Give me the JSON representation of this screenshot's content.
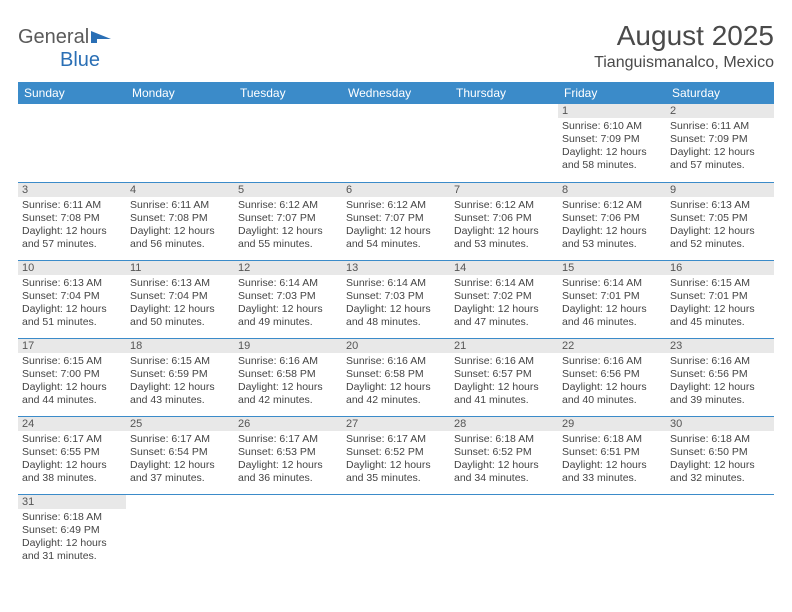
{
  "logo": {
    "text_a": "General",
    "text_b": "Blue"
  },
  "title": "August 2025",
  "location": "Tianguismanalco, Mexico",
  "colors": {
    "header_bg": "#3b8bc9",
    "header_text": "#ffffff",
    "daynum_bg": "#e8e8e8",
    "grid_border": "#3b8bc9",
    "body_text": "#444444"
  },
  "daynames": [
    "Sunday",
    "Monday",
    "Tuesday",
    "Wednesday",
    "Thursday",
    "Friday",
    "Saturday"
  ],
  "weeks": [
    [
      null,
      null,
      null,
      null,
      null,
      {
        "n": "1",
        "sr": "Sunrise: 6:10 AM",
        "ss": "Sunset: 7:09 PM",
        "d1": "Daylight: 12 hours",
        "d2": "and 58 minutes."
      },
      {
        "n": "2",
        "sr": "Sunrise: 6:11 AM",
        "ss": "Sunset: 7:09 PM",
        "d1": "Daylight: 12 hours",
        "d2": "and 57 minutes."
      }
    ],
    [
      {
        "n": "3",
        "sr": "Sunrise: 6:11 AM",
        "ss": "Sunset: 7:08 PM",
        "d1": "Daylight: 12 hours",
        "d2": "and 57 minutes."
      },
      {
        "n": "4",
        "sr": "Sunrise: 6:11 AM",
        "ss": "Sunset: 7:08 PM",
        "d1": "Daylight: 12 hours",
        "d2": "and 56 minutes."
      },
      {
        "n": "5",
        "sr": "Sunrise: 6:12 AM",
        "ss": "Sunset: 7:07 PM",
        "d1": "Daylight: 12 hours",
        "d2": "and 55 minutes."
      },
      {
        "n": "6",
        "sr": "Sunrise: 6:12 AM",
        "ss": "Sunset: 7:07 PM",
        "d1": "Daylight: 12 hours",
        "d2": "and 54 minutes."
      },
      {
        "n": "7",
        "sr": "Sunrise: 6:12 AM",
        "ss": "Sunset: 7:06 PM",
        "d1": "Daylight: 12 hours",
        "d2": "and 53 minutes."
      },
      {
        "n": "8",
        "sr": "Sunrise: 6:12 AM",
        "ss": "Sunset: 7:06 PM",
        "d1": "Daylight: 12 hours",
        "d2": "and 53 minutes."
      },
      {
        "n": "9",
        "sr": "Sunrise: 6:13 AM",
        "ss": "Sunset: 7:05 PM",
        "d1": "Daylight: 12 hours",
        "d2": "and 52 minutes."
      }
    ],
    [
      {
        "n": "10",
        "sr": "Sunrise: 6:13 AM",
        "ss": "Sunset: 7:04 PM",
        "d1": "Daylight: 12 hours",
        "d2": "and 51 minutes."
      },
      {
        "n": "11",
        "sr": "Sunrise: 6:13 AM",
        "ss": "Sunset: 7:04 PM",
        "d1": "Daylight: 12 hours",
        "d2": "and 50 minutes."
      },
      {
        "n": "12",
        "sr": "Sunrise: 6:14 AM",
        "ss": "Sunset: 7:03 PM",
        "d1": "Daylight: 12 hours",
        "d2": "and 49 minutes."
      },
      {
        "n": "13",
        "sr": "Sunrise: 6:14 AM",
        "ss": "Sunset: 7:03 PM",
        "d1": "Daylight: 12 hours",
        "d2": "and 48 minutes."
      },
      {
        "n": "14",
        "sr": "Sunrise: 6:14 AM",
        "ss": "Sunset: 7:02 PM",
        "d1": "Daylight: 12 hours",
        "d2": "and 47 minutes."
      },
      {
        "n": "15",
        "sr": "Sunrise: 6:14 AM",
        "ss": "Sunset: 7:01 PM",
        "d1": "Daylight: 12 hours",
        "d2": "and 46 minutes."
      },
      {
        "n": "16",
        "sr": "Sunrise: 6:15 AM",
        "ss": "Sunset: 7:01 PM",
        "d1": "Daylight: 12 hours",
        "d2": "and 45 minutes."
      }
    ],
    [
      {
        "n": "17",
        "sr": "Sunrise: 6:15 AM",
        "ss": "Sunset: 7:00 PM",
        "d1": "Daylight: 12 hours",
        "d2": "and 44 minutes."
      },
      {
        "n": "18",
        "sr": "Sunrise: 6:15 AM",
        "ss": "Sunset: 6:59 PM",
        "d1": "Daylight: 12 hours",
        "d2": "and 43 minutes."
      },
      {
        "n": "19",
        "sr": "Sunrise: 6:16 AM",
        "ss": "Sunset: 6:58 PM",
        "d1": "Daylight: 12 hours",
        "d2": "and 42 minutes."
      },
      {
        "n": "20",
        "sr": "Sunrise: 6:16 AM",
        "ss": "Sunset: 6:58 PM",
        "d1": "Daylight: 12 hours",
        "d2": "and 42 minutes."
      },
      {
        "n": "21",
        "sr": "Sunrise: 6:16 AM",
        "ss": "Sunset: 6:57 PM",
        "d1": "Daylight: 12 hours",
        "d2": "and 41 minutes."
      },
      {
        "n": "22",
        "sr": "Sunrise: 6:16 AM",
        "ss": "Sunset: 6:56 PM",
        "d1": "Daylight: 12 hours",
        "d2": "and 40 minutes."
      },
      {
        "n": "23",
        "sr": "Sunrise: 6:16 AM",
        "ss": "Sunset: 6:56 PM",
        "d1": "Daylight: 12 hours",
        "d2": "and 39 minutes."
      }
    ],
    [
      {
        "n": "24",
        "sr": "Sunrise: 6:17 AM",
        "ss": "Sunset: 6:55 PM",
        "d1": "Daylight: 12 hours",
        "d2": "and 38 minutes."
      },
      {
        "n": "25",
        "sr": "Sunrise: 6:17 AM",
        "ss": "Sunset: 6:54 PM",
        "d1": "Daylight: 12 hours",
        "d2": "and 37 minutes."
      },
      {
        "n": "26",
        "sr": "Sunrise: 6:17 AM",
        "ss": "Sunset: 6:53 PM",
        "d1": "Daylight: 12 hours",
        "d2": "and 36 minutes."
      },
      {
        "n": "27",
        "sr": "Sunrise: 6:17 AM",
        "ss": "Sunset: 6:52 PM",
        "d1": "Daylight: 12 hours",
        "d2": "and 35 minutes."
      },
      {
        "n": "28",
        "sr": "Sunrise: 6:18 AM",
        "ss": "Sunset: 6:52 PM",
        "d1": "Daylight: 12 hours",
        "d2": "and 34 minutes."
      },
      {
        "n": "29",
        "sr": "Sunrise: 6:18 AM",
        "ss": "Sunset: 6:51 PM",
        "d1": "Daylight: 12 hours",
        "d2": "and 33 minutes."
      },
      {
        "n": "30",
        "sr": "Sunrise: 6:18 AM",
        "ss": "Sunset: 6:50 PM",
        "d1": "Daylight: 12 hours",
        "d2": "and 32 minutes."
      }
    ],
    [
      {
        "n": "31",
        "sr": "Sunrise: 6:18 AM",
        "ss": "Sunset: 6:49 PM",
        "d1": "Daylight: 12 hours",
        "d2": "and 31 minutes."
      },
      null,
      null,
      null,
      null,
      null,
      null
    ]
  ]
}
